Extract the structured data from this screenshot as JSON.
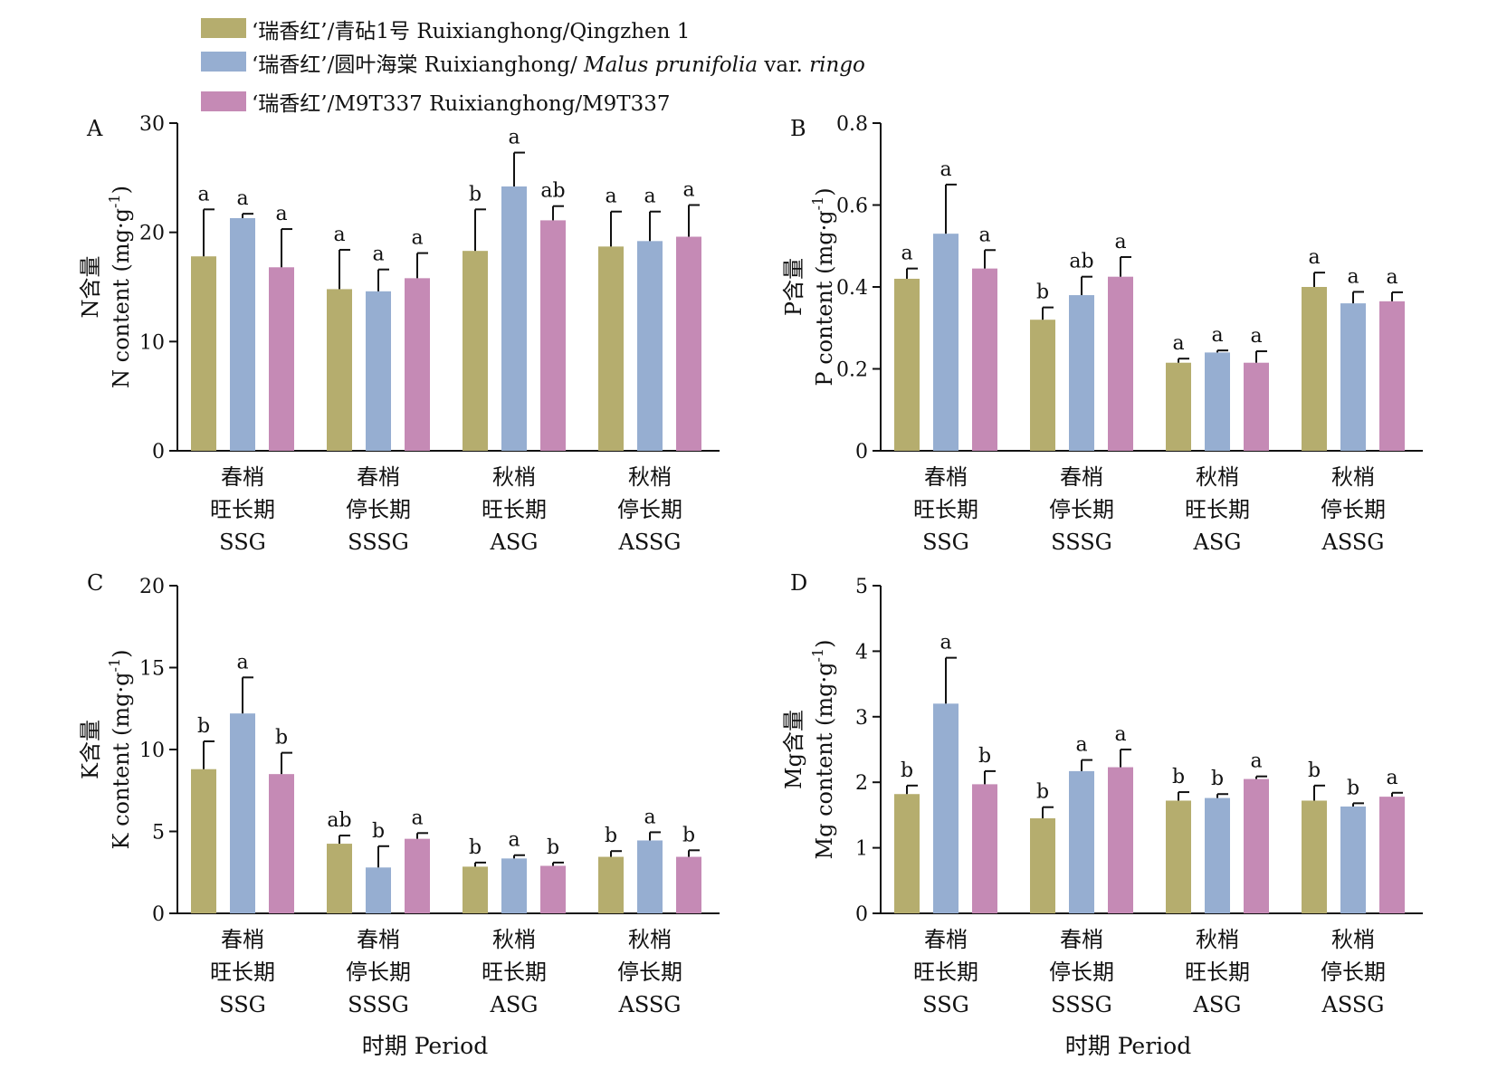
{
  "legend": [
    {
      "key": "qingzhen",
      "color": "#b5ad6e",
      "parts": [
        {
          "text": "‘瑞香红’/青砧1号 Ruixianghong/Qingzhen 1",
          "italic": false
        }
      ]
    },
    {
      "key": "ringo",
      "color": "#96aed1",
      "parts": [
        {
          "text": "‘瑞香红’/圆叶海棠 Ruixianghong/ ",
          "italic": false
        },
        {
          "text": "Malus prunifolia",
          "italic": true
        },
        {
          "text": " var. ",
          "italic": false
        },
        {
          "text": "ringo",
          "italic": true
        }
      ]
    },
    {
      "key": "m9t337",
      "color": "#c58ab5",
      "parts": [
        {
          "text": "‘瑞香红’/M9T337 Ruixianghong/M9T337",
          "italic": false
        }
      ]
    }
  ],
  "x_axis_title": "时期 Period",
  "chart_data": [
    {
      "panel": "A",
      "type": "bar",
      "categories": [
        [
          "春梢",
          "旺长期",
          "SSG"
        ],
        [
          "春梢",
          "停长期",
          "SSSG"
        ],
        [
          "秋梢",
          "旺长期",
          "ASG"
        ],
        [
          "秋梢",
          "停长期",
          "ASSG"
        ]
      ],
      "ylabel_zh": "N含量",
      "ylabel_en": "N content (mg·g",
      "ylabel_sup": "-1",
      "ylabel_close": ")",
      "ylim": [
        0,
        30
      ],
      "yticks": [
        0,
        10,
        20,
        30
      ],
      "ytick_labels": [
        "0",
        "10",
        "20",
        "30"
      ],
      "xlabel": "",
      "series": [
        {
          "key": "qingzhen",
          "values": [
            17.8,
            14.8,
            18.3,
            18.7
          ],
          "errors": [
            4.3,
            3.6,
            3.8,
            3.2
          ],
          "letters": [
            "a",
            "a",
            "b",
            "a"
          ]
        },
        {
          "key": "ringo",
          "values": [
            21.3,
            14.6,
            24.2,
            19.2
          ],
          "errors": [
            0.4,
            2.0,
            3.1,
            2.7
          ],
          "letters": [
            "a",
            "a",
            "a",
            "a"
          ]
        },
        {
          "key": "m9t337",
          "values": [
            16.8,
            15.8,
            21.1,
            19.6
          ],
          "errors": [
            3.5,
            2.3,
            1.3,
            2.9
          ],
          "letters": [
            "a",
            "a",
            "ab",
            "a"
          ]
        }
      ]
    },
    {
      "panel": "B",
      "type": "bar",
      "categories": [
        [
          "春梢",
          "旺长期",
          "SSG"
        ],
        [
          "春梢",
          "停长期",
          "SSSG"
        ],
        [
          "秋梢",
          "旺长期",
          "ASG"
        ],
        [
          "秋梢",
          "停长期",
          "ASSG"
        ]
      ],
      "ylabel_zh": "P含量",
      "ylabel_en": "P content (mg·g",
      "ylabel_sup": "-1",
      "ylabel_close": ")",
      "ylim": [
        0,
        0.8
      ],
      "yticks": [
        0,
        0.2,
        0.4,
        0.6,
        0.8
      ],
      "ytick_labels": [
        "0",
        "0.2",
        "0.4",
        "0.6",
        "0.8"
      ],
      "xlabel": "",
      "series": [
        {
          "key": "qingzhen",
          "values": [
            0.42,
            0.32,
            0.215,
            0.4
          ],
          "errors": [
            0.025,
            0.03,
            0.01,
            0.035
          ],
          "letters": [
            "a",
            "b",
            "a",
            "a"
          ]
        },
        {
          "key": "ringo",
          "values": [
            0.53,
            0.38,
            0.24,
            0.36
          ],
          "errors": [
            0.12,
            0.045,
            0.005,
            0.028
          ],
          "letters": [
            "a",
            "ab",
            "a",
            "a"
          ]
        },
        {
          "key": "m9t337",
          "values": [
            0.445,
            0.425,
            0.215,
            0.365
          ],
          "errors": [
            0.045,
            0.048,
            0.028,
            0.022
          ],
          "letters": [
            "a",
            "a",
            "a",
            "a"
          ]
        }
      ]
    },
    {
      "panel": "C",
      "type": "bar",
      "categories": [
        [
          "春梢",
          "旺长期",
          "SSG"
        ],
        [
          "春梢",
          "停长期",
          "SSSG"
        ],
        [
          "秋梢",
          "旺长期",
          "ASG"
        ],
        [
          "秋梢",
          "停长期",
          "ASSG"
        ]
      ],
      "ylabel_zh": "K含量",
      "ylabel_en": "K content (mg·g",
      "ylabel_sup": "-1",
      "ylabel_close": ")",
      "ylim": [
        0,
        20
      ],
      "yticks": [
        0,
        5,
        10,
        15,
        20
      ],
      "ytick_labels": [
        "0",
        "5",
        "10",
        "15",
        "20"
      ],
      "xlabel": "时期 Period",
      "series": [
        {
          "key": "qingzhen",
          "values": [
            8.8,
            4.25,
            2.85,
            3.45
          ],
          "errors": [
            1.7,
            0.5,
            0.25,
            0.35
          ],
          "letters": [
            "b",
            "ab",
            "b",
            "b"
          ]
        },
        {
          "key": "ringo",
          "values": [
            12.2,
            2.8,
            3.35,
            4.45
          ],
          "errors": [
            2.2,
            1.3,
            0.2,
            0.5
          ],
          "letters": [
            "a",
            "b",
            "a",
            "a"
          ]
        },
        {
          "key": "m9t337",
          "values": [
            8.5,
            4.55,
            2.9,
            3.45
          ],
          "errors": [
            1.3,
            0.35,
            0.2,
            0.4
          ],
          "letters": [
            "b",
            "a",
            "b",
            "b"
          ]
        }
      ]
    },
    {
      "panel": "D",
      "type": "bar",
      "categories": [
        [
          "春梢",
          "旺长期",
          "SSG"
        ],
        [
          "春梢",
          "停长期",
          "SSSG"
        ],
        [
          "秋梢",
          "旺长期",
          "ASG"
        ],
        [
          "秋梢",
          "停长期",
          "ASSG"
        ]
      ],
      "ylabel_zh": "Mg含量",
      "ylabel_en": "Mg content (mg·g",
      "ylabel_sup": "-1",
      "ylabel_close": ")",
      "ylim": [
        0,
        5
      ],
      "yticks": [
        0,
        1,
        2,
        3,
        4,
        5
      ],
      "ytick_labels": [
        "0",
        "1",
        "2",
        "3",
        "4",
        "5"
      ],
      "xlabel": "时期 Period",
      "series": [
        {
          "key": "qingzhen",
          "values": [
            1.82,
            1.45,
            1.72,
            1.72
          ],
          "errors": [
            0.13,
            0.17,
            0.13,
            0.23
          ],
          "letters": [
            "b",
            "b",
            "b",
            "b"
          ]
        },
        {
          "key": "ringo",
          "values": [
            3.2,
            2.17,
            1.76,
            1.63
          ],
          "errors": [
            0.7,
            0.17,
            0.06,
            0.05
          ],
          "letters": [
            "a",
            "a",
            "b",
            "b"
          ]
        },
        {
          "key": "m9t337",
          "values": [
            1.97,
            2.23,
            2.05,
            1.78
          ],
          "errors": [
            0.2,
            0.27,
            0.04,
            0.06
          ],
          "letters": [
            "b",
            "a",
            "a",
            "a"
          ]
        }
      ]
    }
  ]
}
